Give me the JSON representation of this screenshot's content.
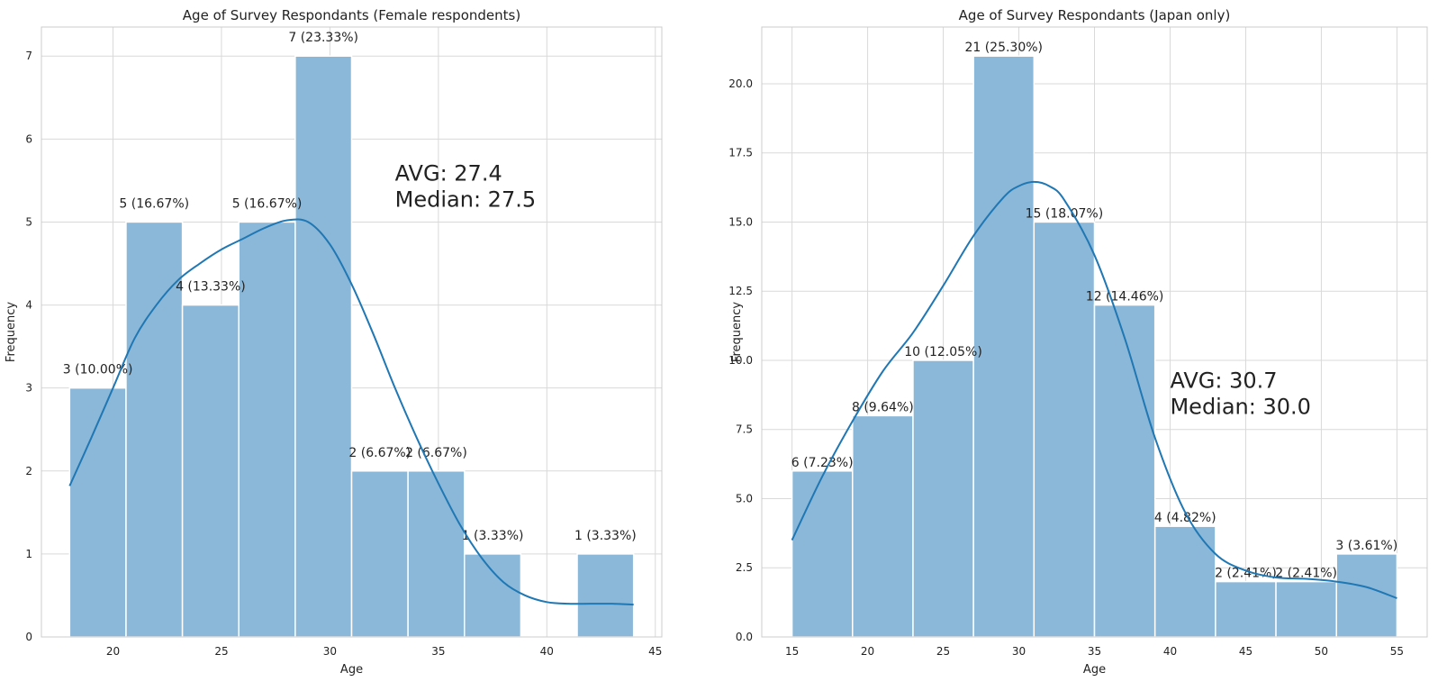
{
  "chart_data": [
    {
      "type": "bar",
      "title": "Age of Survey Respondants (Female respondents)",
      "xlabel": "Age",
      "ylabel": "Frequency",
      "bin_edges": [
        18,
        20.6,
        23.2,
        25.8,
        28.4,
        31,
        33.6,
        36.2,
        38.8,
        41.4,
        44
      ],
      "values": [
        3,
        5,
        4,
        5,
        7,
        2,
        2,
        1,
        0,
        1
      ],
      "labels": [
        "3 (10.00%)",
        "5 (16.67%)",
        "4 (13.33%)",
        "5 (16.67%)",
        "7 (23.33%)",
        "2 (6.67%)",
        "2 (6.67%)",
        "1 (3.33%)",
        "",
        "1 (3.33%)"
      ],
      "xlim": [
        16.7,
        45.3
      ],
      "ylim": [
        0,
        7.35
      ],
      "x_ticks": [
        "20",
        "25",
        "30",
        "35",
        "40",
        "45"
      ],
      "y_ticks": [
        "0",
        "1",
        "2",
        "3",
        "4",
        "5",
        "6",
        "7"
      ],
      "kde": {
        "x": [
          18,
          19,
          20,
          21,
          22,
          23,
          24,
          25,
          26,
          27,
          28,
          29,
          30,
          31,
          32,
          33,
          34,
          35,
          36,
          37,
          38,
          39,
          40,
          41,
          42,
          43,
          44
        ],
        "y": [
          1.82,
          2.4,
          3.0,
          3.6,
          4.0,
          4.3,
          4.5,
          4.67,
          4.8,
          4.93,
          5.02,
          5.0,
          4.73,
          4.25,
          3.65,
          3.0,
          2.4,
          1.85,
          1.35,
          0.95,
          0.66,
          0.5,
          0.42,
          0.4,
          0.4,
          0.4,
          0.39
        ]
      },
      "annotation": [
        "AVG: 27.4",
        "Median: 27.5"
      ]
    },
    {
      "type": "bar",
      "title": "Age of Survey Respondants (Japan only)",
      "xlabel": "Age",
      "ylabel": "Frequency",
      "bin_edges": [
        15,
        19,
        23,
        27,
        31,
        35,
        39,
        43,
        47,
        51,
        55
      ],
      "values": [
        6,
        8,
        10,
        21,
        15,
        12,
        4,
        2,
        2,
        3
      ],
      "labels": [
        "6 (7.23%)",
        "8 (9.64%)",
        "10 (12.05%)",
        "21 (25.30%)",
        "15 (18.07%)",
        "12 (14.46%)",
        "4 (4.82%)",
        "2 (2.41%)",
        "2 (2.41%)",
        "3 (3.61%)"
      ],
      "xlim": [
        13,
        57
      ],
      "ylim": [
        0,
        22.05
      ],
      "x_ticks": [
        "15",
        "20",
        "25",
        "30",
        "35",
        "40",
        "45",
        "50",
        "55"
      ],
      "y_ticks": [
        "0.0",
        "2.5",
        "5.0",
        "7.5",
        "10.0",
        "12.5",
        "15.0",
        "17.5",
        "20.0"
      ],
      "kde": {
        "x": [
          15,
          17,
          19,
          21,
          23,
          25,
          27,
          29,
          30,
          31,
          32,
          33,
          35,
          37,
          39,
          41,
          43,
          45,
          47,
          49,
          51,
          53,
          55
        ],
        "y": [
          3.5,
          5.8,
          7.8,
          9.6,
          11.0,
          12.7,
          14.5,
          15.9,
          16.3,
          16.45,
          16.3,
          15.8,
          13.8,
          10.8,
          7.2,
          4.5,
          3.0,
          2.4,
          2.15,
          2.1,
          2.0,
          1.8,
          1.4
        ]
      },
      "annotation": [
        "AVG: 30.7",
        "Median: 30.0"
      ]
    }
  ]
}
